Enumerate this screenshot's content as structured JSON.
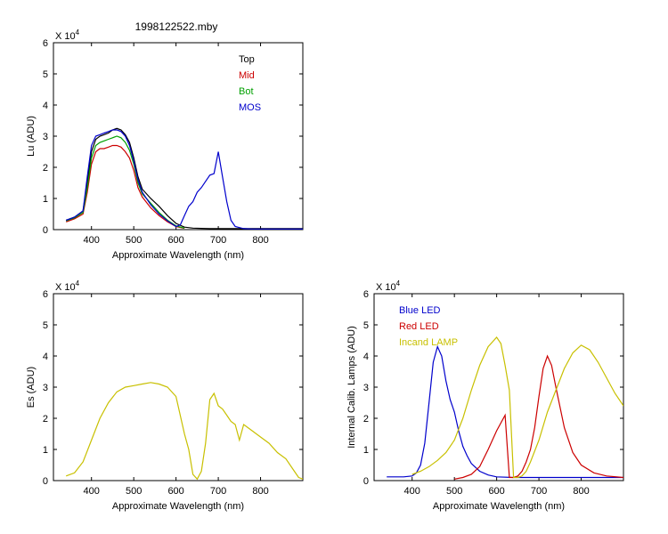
{
  "figure_title": "1998122522.mby",
  "chart_data": [
    {
      "type": "line",
      "id": "lu",
      "title": "1998122522.mby",
      "xlabel": "Approximate Wavelength (nm)",
      "ylabel": "Lu (ADU)",
      "y_multiplier": "X 10^4",
      "xlim": [
        310,
        900
      ],
      "ylim": [
        0,
        6
      ],
      "xticks": [
        400,
        500,
        600,
        700,
        800
      ],
      "yticks": [
        0,
        1,
        2,
        3,
        4,
        5,
        6
      ],
      "legend_position": "top-right",
      "series": [
        {
          "name": "Top",
          "color": "#000000",
          "x": [
            340,
            360,
            380,
            390,
            400,
            410,
            420,
            430,
            440,
            450,
            460,
            470,
            480,
            490,
            500,
            510,
            520,
            540,
            560,
            580,
            600,
            620,
            640,
            660,
            680,
            700,
            720,
            740,
            760,
            780,
            800,
            850,
            900
          ],
          "y": [
            0.3,
            0.4,
            0.6,
            1.5,
            2.5,
            2.9,
            3.0,
            3.05,
            3.1,
            3.2,
            3.25,
            3.2,
            3.05,
            2.8,
            2.3,
            1.7,
            1.3,
            1.0,
            0.75,
            0.45,
            0.2,
            0.08,
            0.05,
            0.04,
            0.03,
            0.03,
            0.03,
            0.03,
            0.03,
            0.03,
            0.03,
            0.03,
            0.03
          ]
        },
        {
          "name": "Mid",
          "color": "#cc0000",
          "x": [
            340,
            360,
            380,
            390,
            400,
            410,
            420,
            430,
            440,
            450,
            460,
            470,
            480,
            490,
            500,
            510,
            520,
            540,
            560,
            580,
            600,
            620
          ],
          "y": [
            0.25,
            0.35,
            0.5,
            1.2,
            2.1,
            2.5,
            2.6,
            2.6,
            2.65,
            2.7,
            2.7,
            2.65,
            2.5,
            2.3,
            1.9,
            1.35,
            1.05,
            0.7,
            0.45,
            0.25,
            0.1,
            0.04
          ]
        },
        {
          "name": "Bot",
          "color": "#00a000",
          "x": [
            340,
            360,
            380,
            390,
            400,
            410,
            420,
            430,
            440,
            450,
            460,
            470,
            480,
            490,
            500,
            510,
            520,
            540,
            560,
            580,
            600,
            620
          ],
          "y": [
            0.28,
            0.38,
            0.55,
            1.35,
            2.3,
            2.7,
            2.8,
            2.85,
            2.9,
            2.95,
            3.0,
            2.95,
            2.8,
            2.55,
            2.1,
            1.5,
            1.15,
            0.85,
            0.55,
            0.3,
            0.12,
            0.05
          ]
        },
        {
          "name": "MOS",
          "color": "#0000cc",
          "x": [
            340,
            360,
            380,
            390,
            400,
            410,
            420,
            430,
            440,
            450,
            460,
            470,
            480,
            490,
            500,
            510,
            520,
            540,
            560,
            580,
            600,
            610,
            620,
            630,
            640,
            650,
            660,
            670,
            680,
            690,
            700,
            710,
            720,
            730,
            740,
            760,
            780,
            800,
            850,
            900
          ],
          "y": [
            0.3,
            0.4,
            0.6,
            1.7,
            2.7,
            3.0,
            3.05,
            3.1,
            3.15,
            3.2,
            3.2,
            3.15,
            3.0,
            2.7,
            2.2,
            1.6,
            1.2,
            0.8,
            0.5,
            0.28,
            0.1,
            0.15,
            0.45,
            0.75,
            0.9,
            1.2,
            1.35,
            1.55,
            1.75,
            1.8,
            2.5,
            1.7,
            0.9,
            0.3,
            0.1,
            0.03,
            0.02,
            0.02,
            0.02,
            0.02
          ]
        }
      ]
    },
    {
      "type": "line",
      "id": "es",
      "title": "",
      "xlabel": "Approximate Wavelength (nm)",
      "ylabel": "Es (ADU)",
      "y_multiplier": "X 10^4",
      "xlim": [
        310,
        900
      ],
      "ylim": [
        0,
        6
      ],
      "xticks": [
        400,
        500,
        600,
        700,
        800
      ],
      "yticks": [
        0,
        1,
        2,
        3,
        4,
        5,
        6
      ],
      "series": [
        {
          "color": "#c8c000",
          "x": [
            340,
            360,
            380,
            400,
            420,
            440,
            460,
            480,
            500,
            520,
            540,
            560,
            580,
            600,
            620,
            630,
            640,
            650,
            660,
            670,
            680,
            690,
            700,
            710,
            720,
            730,
            740,
            750,
            760,
            780,
            800,
            820,
            840,
            860,
            880,
            890,
            900
          ],
          "y": [
            0.15,
            0.25,
            0.6,
            1.3,
            2.0,
            2.5,
            2.85,
            3.0,
            3.05,
            3.1,
            3.15,
            3.1,
            3.0,
            2.7,
            1.5,
            1.0,
            0.2,
            0.05,
            0.3,
            1.2,
            2.6,
            2.8,
            2.4,
            2.3,
            2.1,
            1.9,
            1.8,
            1.3,
            1.8,
            1.6,
            1.4,
            1.2,
            0.9,
            0.7,
            0.3,
            0.1,
            0.05
          ]
        }
      ]
    },
    {
      "type": "line",
      "id": "lamps",
      "title": "",
      "xlabel": "Approximate Wavelength (nm)",
      "ylabel": "Internal Calib. Lamps (ADU)",
      "y_multiplier": "X 10^4",
      "xlim": [
        310,
        900
      ],
      "ylim": [
        0,
        6
      ],
      "xticks": [
        400,
        500,
        600,
        700,
        800
      ],
      "yticks": [
        0,
        1,
        2,
        3,
        4,
        5,
        6
      ],
      "legend_position": "top-left",
      "series": [
        {
          "name": "Blue LED",
          "color": "#0000cc",
          "x": [
            340,
            380,
            400,
            410,
            420,
            430,
            440,
            450,
            460,
            470,
            480,
            490,
            500,
            510,
            520,
            530,
            540,
            560,
            580,
            600,
            640,
            700,
            800,
            900
          ],
          "y": [
            0.12,
            0.12,
            0.15,
            0.25,
            0.5,
            1.2,
            2.5,
            3.8,
            4.3,
            4.0,
            3.2,
            2.6,
            2.2,
            1.6,
            1.1,
            0.8,
            0.55,
            0.3,
            0.18,
            0.12,
            0.1,
            0.1,
            0.1,
            0.1
          ]
        },
        {
          "name": "Red LED",
          "color": "#cc0000",
          "x": [
            500,
            520,
            540,
            560,
            580,
            600,
            620,
            630,
            640,
            650,
            660,
            670,
            680,
            690,
            700,
            710,
            720,
            730,
            740,
            760,
            780,
            800,
            830,
            860,
            900
          ],
          "y": [
            0.05,
            0.1,
            0.2,
            0.45,
            1.0,
            1.6,
            2.1,
            0.1,
            0.1,
            0.15,
            0.3,
            0.6,
            1.0,
            1.7,
            2.7,
            3.6,
            4.0,
            3.7,
            3.0,
            1.7,
            0.9,
            0.5,
            0.25,
            0.15,
            0.1
          ]
        },
        {
          "name": "Incand LAMP",
          "color": "#c8c000",
          "x": [
            400,
            420,
            440,
            460,
            480,
            500,
            520,
            540,
            560,
            580,
            600,
            610,
            620,
            630,
            640,
            650,
            660,
            670,
            680,
            700,
            720,
            740,
            760,
            780,
            800,
            820,
            840,
            860,
            880,
            900
          ],
          "y": [
            0.2,
            0.3,
            0.45,
            0.65,
            0.9,
            1.3,
            2.0,
            2.9,
            3.7,
            4.3,
            4.6,
            4.4,
            3.7,
            2.9,
            0.1,
            0.1,
            0.15,
            0.3,
            0.6,
            1.3,
            2.2,
            2.9,
            3.6,
            4.1,
            4.35,
            4.2,
            3.8,
            3.3,
            2.8,
            2.4
          ]
        }
      ]
    }
  ]
}
